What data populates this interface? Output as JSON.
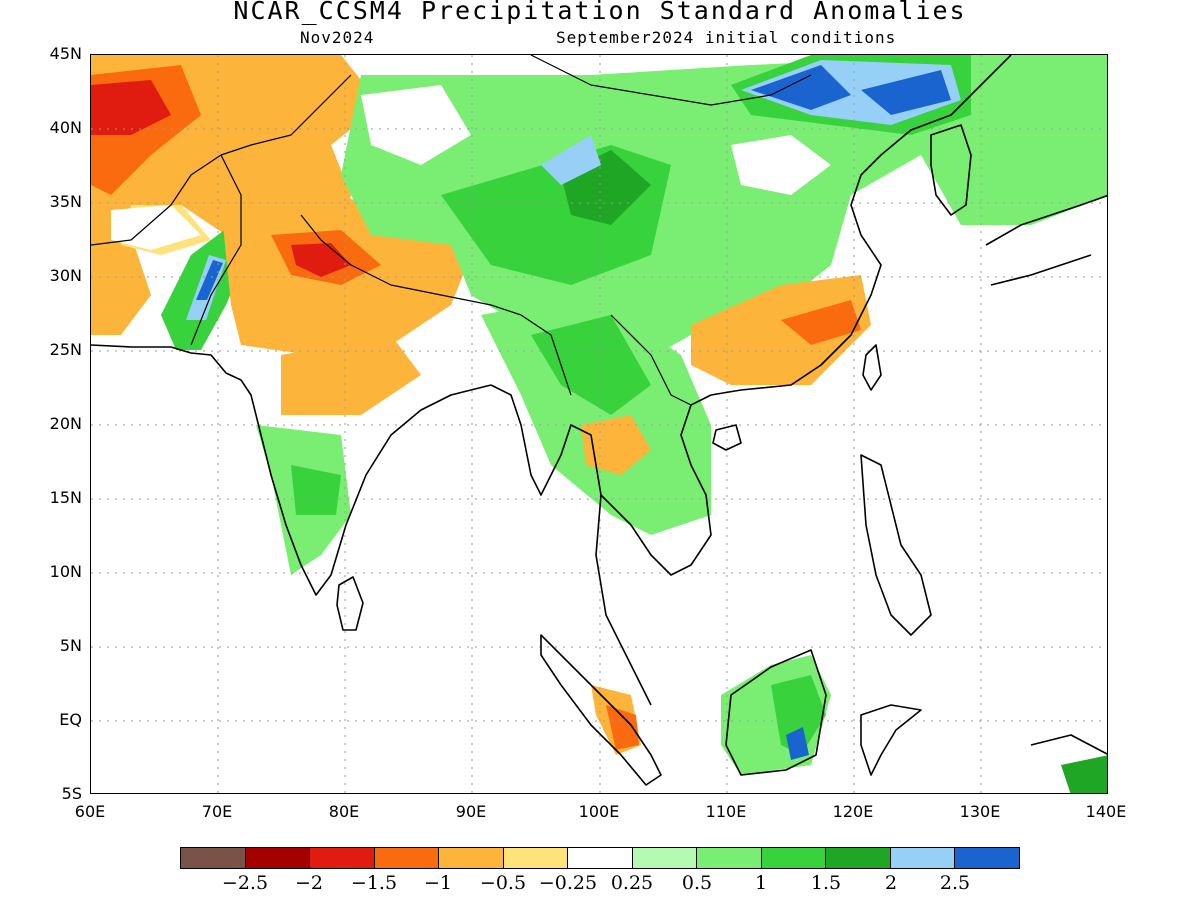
{
  "header": {
    "title": "NCAR_CCSM4 Precipitation Standard Anomalies",
    "forecast_month": "Nov2024",
    "init_conditions": "September2024 initial conditions"
  },
  "axes": {
    "lat_labels": [
      "45N",
      "40N",
      "35N",
      "30N",
      "25N",
      "20N",
      "15N",
      "10N",
      "5N",
      "EQ",
      "5S"
    ],
    "lon_labels": [
      "60E",
      "70E",
      "80E",
      "90E",
      "100E",
      "110E",
      "120E",
      "130E",
      "140E"
    ]
  },
  "legend": {
    "colors": [
      "#7b5246",
      "#a50000",
      "#e01b10",
      "#fa6a0e",
      "#fcb43a",
      "#fde37a",
      "#ffffff",
      "#b4fab1",
      "#79ee72",
      "#37d23c",
      "#1ea624",
      "#96d0f7",
      "#1a64d0"
    ],
    "labels": [
      "−2.5",
      "−2",
      "−1.5",
      "−1",
      "−0.5",
      "−0.25",
      "0.25",
      "0.5",
      "1",
      "1.5",
      "2",
      "2.5"
    ]
  },
  "colors": {
    "land_outline": "#000000",
    "grid": "#9a9a9a"
  }
}
